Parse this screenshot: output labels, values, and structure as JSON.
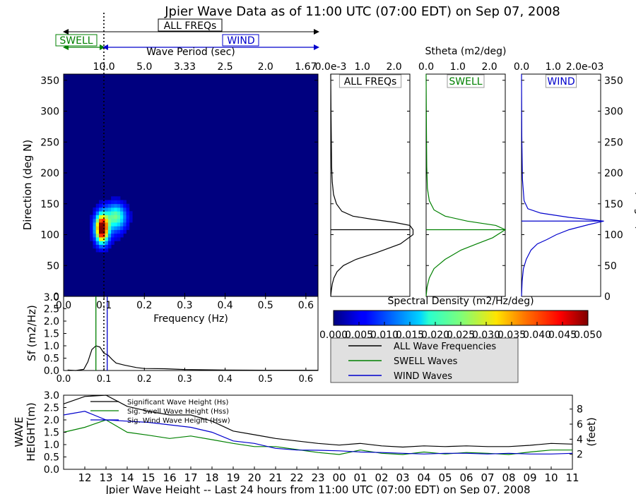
{
  "title": "Jpier Wave Data as of 11:00 UTC (07:00 EDT) on Sep 07, 2008",
  "bands": {
    "all": "ALL FREQs",
    "swell": "SWELL",
    "wind": "WIND"
  },
  "colors": {
    "all": "#000000",
    "swell": "#008000",
    "wind": "#0000cc",
    "legend_bg": "#e0e0e0"
  },
  "chart_data": [
    {
      "id": "directional-spectrum",
      "type": "heatmap",
      "top_axis_label": "Wave Period (sec)",
      "top_ticks": [
        "10.0",
        "5.0",
        "3.33",
        "2.5",
        "2.0",
        "1.67"
      ],
      "top_tick_freqs": [
        0.1,
        0.2,
        0.3,
        0.4,
        0.5,
        0.6
      ],
      "xlabel": "Frequency (Hz)",
      "ylabel": "Direction (deg N)",
      "xlim": [
        0.0,
        0.63
      ],
      "ylim": [
        0,
        360
      ],
      "xticks": [
        "0.0",
        "0.1",
        "0.2",
        "0.3",
        "0.4",
        "0.5",
        "0.6"
      ],
      "yticks": [
        "0",
        "50",
        "100",
        "150",
        "200",
        "250",
        "300",
        "350"
      ],
      "peaks": [
        {
          "freq": 0.095,
          "dir": 110,
          "value": 0.05
        },
        {
          "freq": 0.13,
          "dir": 130,
          "value": 0.02
        }
      ],
      "separation_freq": 0.1
    },
    {
      "id": "stheta-all",
      "type": "line",
      "panel_label": "ALL FREQs",
      "xticks": [
        "0.0e-3",
        "1.0",
        "2.0"
      ],
      "xlim": [
        0,
        2.5
      ],
      "ylim": [
        0,
        360
      ],
      "peak_dir": 108,
      "x": [
        0.0,
        0.02,
        0.05,
        0.1,
        0.2,
        0.4,
        0.8,
        1.4,
        2.2,
        2.6,
        2.6,
        2.5,
        2.0,
        1.3,
        0.7,
        0.35,
        0.18,
        0.09,
        0.05,
        0.03,
        0.02,
        0.01,
        0.0
      ],
      "y": [
        0,
        10,
        20,
        30,
        40,
        50,
        60,
        70,
        85,
        100,
        108,
        115,
        120,
        125,
        130,
        138,
        150,
        165,
        185,
        210,
        250,
        300,
        360
      ]
    },
    {
      "id": "stheta-swell",
      "type": "line",
      "panel_label": "SWELL",
      "title": "Stheta (m2/deg)",
      "xticks": [
        "0.0",
        "1.0",
        "2.0"
      ],
      "xlim": [
        0,
        2.5
      ],
      "ylim": [
        0,
        360
      ],
      "peak_dir": 108,
      "x": [
        0.0,
        0.03,
        0.1,
        0.25,
        0.6,
        1.1,
        1.6,
        2.1,
        2.5,
        2.2,
        1.3,
        0.6,
        0.25,
        0.1,
        0.04,
        0.02,
        0.01,
        0.0
      ],
      "y": [
        0,
        15,
        30,
        45,
        60,
        75,
        85,
        95,
        108,
        115,
        122,
        130,
        140,
        155,
        175,
        210,
        280,
        360
      ]
    },
    {
      "id": "stheta-wind",
      "type": "line",
      "panel_label": "WIND",
      "xticks": [
        "0.0",
        "1.0",
        "2.0e-03"
      ],
      "xlim": [
        0,
        2.5
      ],
      "ylim": [
        0,
        360
      ],
      "peak_dir": 122,
      "x": [
        0.0,
        0.02,
        0.06,
        0.15,
        0.3,
        0.5,
        0.8,
        1.1,
        1.5,
        2.1,
        2.6,
        1.5,
        0.6,
        0.2,
        0.08,
        0.03,
        0.01,
        0.0
      ],
      "y": [
        0,
        25,
        45,
        60,
        75,
        85,
        92,
        100,
        108,
        116,
        122,
        128,
        135,
        142,
        155,
        190,
        260,
        360
      ]
    },
    {
      "id": "frequency-spectrum",
      "type": "line",
      "xlabel": "Frequency (Hz)",
      "ylabel": "Sf (m2/Hz)",
      "xlim": [
        0.0,
        0.63
      ],
      "ylim": [
        0,
        3.0
      ],
      "yticks": [
        "0.0",
        "0.5",
        "1.0",
        "1.5",
        "2.0",
        "2.5",
        "3.0"
      ],
      "xticks": [
        "0.0",
        "0.1",
        "0.2",
        "0.3",
        "0.4",
        "0.5",
        "0.6"
      ],
      "swell_freq": 0.08,
      "wind_freq": 0.108,
      "x": [
        0.01,
        0.03,
        0.05,
        0.06,
        0.07,
        0.08,
        0.09,
        0.1,
        0.11,
        0.12,
        0.13,
        0.15,
        0.18,
        0.2,
        0.25,
        0.3,
        0.4,
        0.5,
        0.6,
        0.63
      ],
      "y": [
        0.02,
        0.0,
        0.05,
        0.35,
        0.85,
        1.0,
        0.95,
        0.7,
        0.62,
        0.45,
        0.3,
        0.22,
        0.12,
        0.08,
        0.07,
        0.04,
        0.02,
        0.01,
        0.01,
        0.01
      ]
    },
    {
      "id": "wave-height-history",
      "type": "line",
      "xlabel": "Jpier Wave Height -- Last 24 hours from 11:00 UTC (07:00 EDT) on Sep 07, 2008",
      "ylabel": "WAVE HEIGHT(m)",
      "ylabel_right": "(feet)",
      "categories": [
        "11",
        "12",
        "13",
        "14",
        "15",
        "16",
        "17",
        "18",
        "19",
        "20",
        "21",
        "22",
        "23",
        "00",
        "01",
        "02",
        "03",
        "04",
        "05",
        "06",
        "07",
        "08",
        "09",
        "10",
        "11"
      ],
      "xtick_labels": [
        "12",
        "13",
        "14",
        "15",
        "16",
        "17",
        "18",
        "19",
        "20",
        "21",
        "22",
        "23",
        "00",
        "01",
        "02",
        "03",
        "04",
        "05",
        "06",
        "07",
        "08",
        "09",
        "10",
        "11"
      ],
      "ylim": [
        0,
        3.0
      ],
      "yticks": [
        "0.0",
        "0.5",
        "1.0",
        "1.5",
        "2.0",
        "2.5",
        "3.0"
      ],
      "yticks_right": [
        "2",
        "4",
        "6",
        "8"
      ],
      "series": [
        {
          "name": "Significant Wave Height (Hs)",
          "color": "#000000",
          "values": [
            2.65,
            2.95,
            3.0,
            2.55,
            2.35,
            2.2,
            2.2,
            1.95,
            1.55,
            1.4,
            1.25,
            1.15,
            1.05,
            0.98,
            1.05,
            0.95,
            0.9,
            0.95,
            0.92,
            0.95,
            0.92,
            0.92,
            0.97,
            1.05,
            1.02
          ]
        },
        {
          "name": "Sig. Swell Wave Height (Hss)",
          "color": "#008000",
          "values": [
            1.5,
            1.7,
            2.0,
            1.5,
            1.38,
            1.25,
            1.35,
            1.2,
            1.05,
            0.92,
            0.92,
            0.8,
            0.68,
            0.6,
            0.78,
            0.65,
            0.6,
            0.7,
            0.62,
            0.68,
            0.65,
            0.6,
            0.7,
            0.78,
            0.78
          ]
        },
        {
          "name": "Sig. Wind Wave Height (Hsw)",
          "color": "#0000cc",
          "values": [
            2.2,
            2.35,
            2.0,
            1.95,
            1.9,
            1.8,
            1.7,
            1.5,
            1.15,
            1.05,
            0.85,
            0.78,
            0.77,
            0.75,
            0.7,
            0.68,
            0.65,
            0.62,
            0.65,
            0.65,
            0.62,
            0.65,
            0.62,
            0.62,
            0.65
          ]
        }
      ]
    }
  ],
  "colorbar": {
    "label": "Spectral Density (m2/Hz/deg)",
    "ticks": [
      "0.000",
      "0.005",
      "0.010",
      "0.015",
      "0.020",
      "0.025",
      "0.030",
      "0.035",
      "0.040",
      "0.045",
      "0.050"
    ]
  },
  "legend": [
    {
      "label": "ALL Wave Frequencies",
      "color": "#000000"
    },
    {
      "label": "SWELL Waves",
      "color": "#008000"
    },
    {
      "label": "WIND Waves",
      "color": "#0000cc"
    }
  ]
}
